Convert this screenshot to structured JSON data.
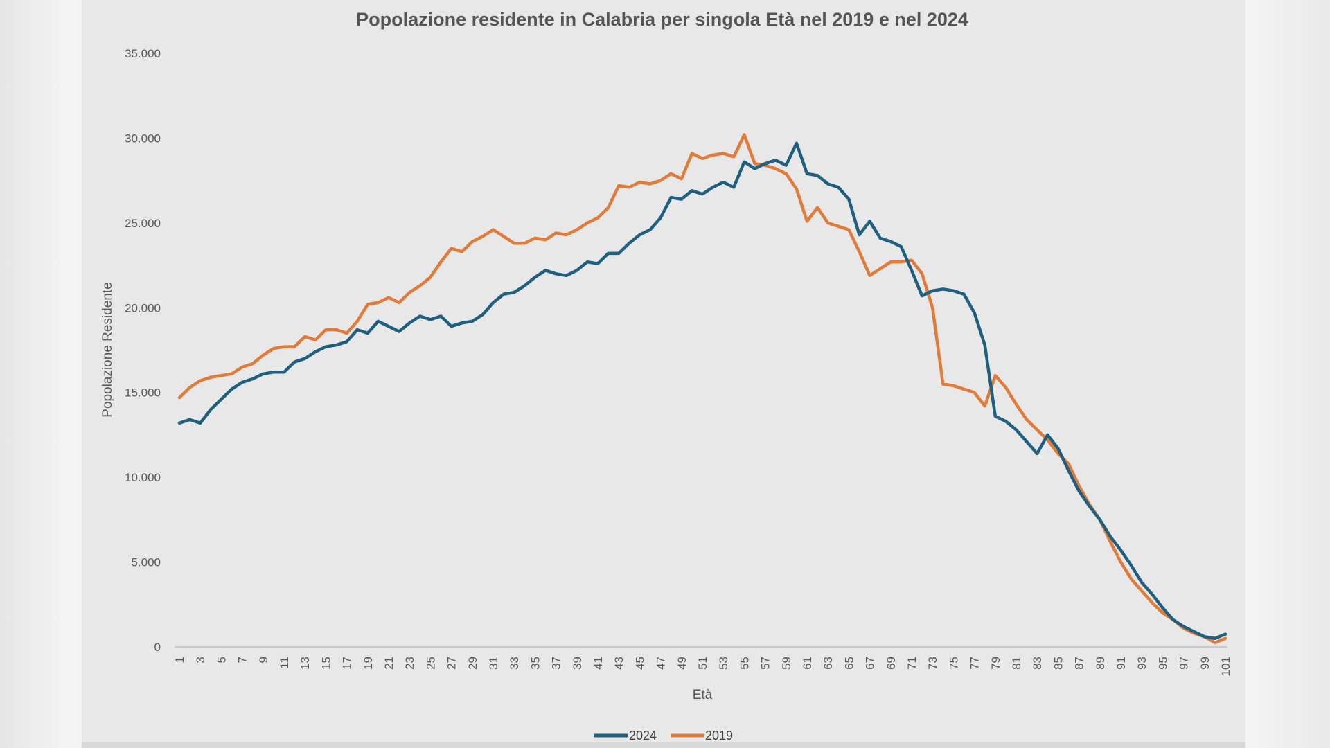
{
  "colors": {
    "s2024": "#1f5f7f",
    "s2019": "#e07b39"
  },
  "chart_data": {
    "type": "line",
    "title": "Popolazione residente in Calabria per singola Età nel 2019 e nel 2024",
    "xlabel": "Età",
    "ylabel": "Popolazione Residente",
    "ylim": [
      0,
      35000
    ],
    "y_ticks": [
      0,
      5000,
      10000,
      15000,
      20000,
      25000,
      30000,
      35000
    ],
    "y_tick_labels": [
      "0",
      "5.000",
      "10.000",
      "15.000",
      "20.000",
      "25.000",
      "30.000",
      "35.000"
    ],
    "x_tick_labels": [
      "1",
      "3",
      "5",
      "7",
      "9",
      "11",
      "13",
      "15",
      "17",
      "19",
      "21",
      "23",
      "25",
      "27",
      "29",
      "31",
      "33",
      "35",
      "37",
      "39",
      "41",
      "43",
      "45",
      "47",
      "49",
      "51",
      "53",
      "55",
      "57",
      "59",
      "61",
      "63",
      "65",
      "67",
      "69",
      "71",
      "73",
      "75",
      "77",
      "79",
      "81",
      "83",
      "85",
      "87",
      "89",
      "91",
      "93",
      "95",
      "97",
      "99",
      "101"
    ],
    "grid": false,
    "legend": "bottom",
    "x": [
      1,
      2,
      3,
      4,
      5,
      6,
      7,
      8,
      9,
      10,
      11,
      12,
      13,
      14,
      15,
      16,
      17,
      18,
      19,
      20,
      21,
      22,
      23,
      24,
      25,
      26,
      27,
      28,
      29,
      30,
      31,
      32,
      33,
      34,
      35,
      36,
      37,
      38,
      39,
      40,
      41,
      42,
      43,
      44,
      45,
      46,
      47,
      48,
      49,
      50,
      51,
      52,
      53,
      54,
      55,
      56,
      57,
      58,
      59,
      60,
      61,
      62,
      63,
      64,
      65,
      66,
      67,
      68,
      69,
      70,
      71,
      72,
      73,
      74,
      75,
      76,
      77,
      78,
      79,
      80,
      81,
      82,
      83,
      84,
      85,
      86,
      87,
      88,
      89,
      90,
      91,
      92,
      93,
      94,
      95,
      96,
      97,
      98,
      99,
      100,
      101
    ],
    "series": [
      {
        "name": "2024",
        "values": [
          13200,
          13400,
          13200,
          14000,
          14600,
          15200,
          15600,
          15800,
          16100,
          16200,
          16200,
          16800,
          17000,
          17400,
          17700,
          17800,
          18000,
          18700,
          18500,
          19200,
          18900,
          18600,
          19100,
          19500,
          19300,
          19500,
          18900,
          19100,
          19200,
          19600,
          20300,
          20800,
          20900,
          21300,
          21800,
          22200,
          22000,
          21900,
          22200,
          22700,
          22600,
          23200,
          23200,
          23800,
          24300,
          24600,
          25300,
          26500,
          26400,
          26900,
          26700,
          27100,
          27400,
          27100,
          28600,
          28200,
          28500,
          28700,
          28400,
          29700,
          27900,
          27800,
          27300,
          27100,
          26400,
          24300,
          25100,
          24100,
          23900,
          23600,
          22200,
          20700,
          21000,
          21100,
          21000,
          20800,
          19700,
          17800,
          13600,
          13300,
          12800,
          12100,
          11400,
          12500,
          11700,
          10400,
          9200,
          8300,
          7500,
          6500,
          5700,
          4800,
          3800,
          3100,
          2300,
          1600,
          1200,
          900,
          600,
          500,
          750
        ]
      },
      {
        "name": "2019",
        "values": [
          14700,
          15300,
          15700,
          15900,
          16000,
          16100,
          16500,
          16700,
          17200,
          17600,
          17700,
          17700,
          18300,
          18100,
          18700,
          18700,
          18500,
          19200,
          20200,
          20300,
          20600,
          20300,
          20900,
          21300,
          21800,
          22700,
          23500,
          23300,
          23900,
          24200,
          24600,
          24200,
          23800,
          23800,
          24100,
          24000,
          24400,
          24300,
          24600,
          25000,
          25300,
          25900,
          27200,
          27100,
          27400,
          27300,
          27500,
          27900,
          27600,
          29100,
          28800,
          29000,
          29100,
          28900,
          30200,
          28500,
          28400,
          28200,
          27900,
          27000,
          25100,
          25900,
          25000,
          24800,
          24600,
          23300,
          21900,
          22300,
          22700,
          22700,
          22800,
          22000,
          20000,
          15500,
          15400,
          15200,
          15000,
          14200,
          16000,
          15300,
          14300,
          13400,
          12800,
          12200,
          11400,
          10800,
          9500,
          8400,
          7500,
          6200,
          5000,
          4000,
          3300,
          2600,
          2000,
          1600,
          1100,
          800,
          600,
          250,
          500
        ]
      }
    ]
  }
}
